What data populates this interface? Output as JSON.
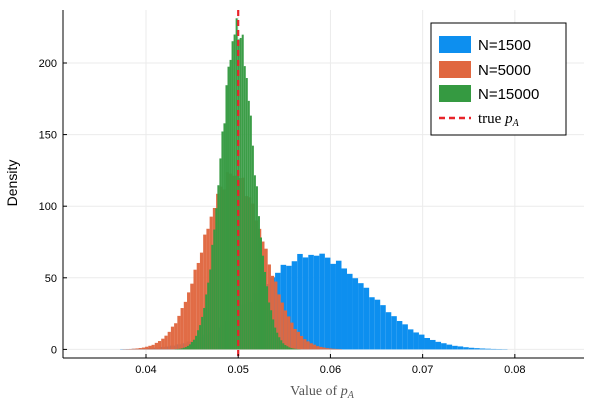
{
  "chart_data": {
    "type": "bar",
    "xlabel_prefix": "Value of ",
    "xlabel_var": "p",
    "xlabel_sub": "A",
    "ylabel": "Density",
    "xlim": [
      0.031,
      0.0875
    ],
    "ylim": [
      -6,
      237
    ],
    "xticks": [
      0.04,
      0.05,
      0.06,
      0.07,
      0.08
    ],
    "xtick_labels": [
      "0.04",
      "0.05",
      "0.06",
      "0.07",
      "0.08"
    ],
    "yticks": [
      0,
      50,
      100,
      150,
      200
    ],
    "ytick_labels": [
      "0",
      "50",
      "100",
      "150",
      "200"
    ],
    "grid": true,
    "legend_position": "top-right",
    "reference_line": {
      "x": 0.05,
      "label_prefix": "true ",
      "label_var": "p",
      "label_sub": "A",
      "color": "#e8242a",
      "style": "dashed"
    },
    "series": [
      {
        "name": "N=1500",
        "color": "#0d8fef",
        "mean": 0.05816,
        "sd": 0.00603,
        "bin_width": 0.0006
      },
      {
        "name": "N=5000",
        "color": "#e06740",
        "mean": 0.0495,
        "sd": 0.00325,
        "bin_width": 0.00035
      },
      {
        "name": "N=15000",
        "color": "#359a41",
        "mean": 0.0499,
        "sd": 0.00178,
        "bin_width": 0.00022
      }
    ]
  }
}
